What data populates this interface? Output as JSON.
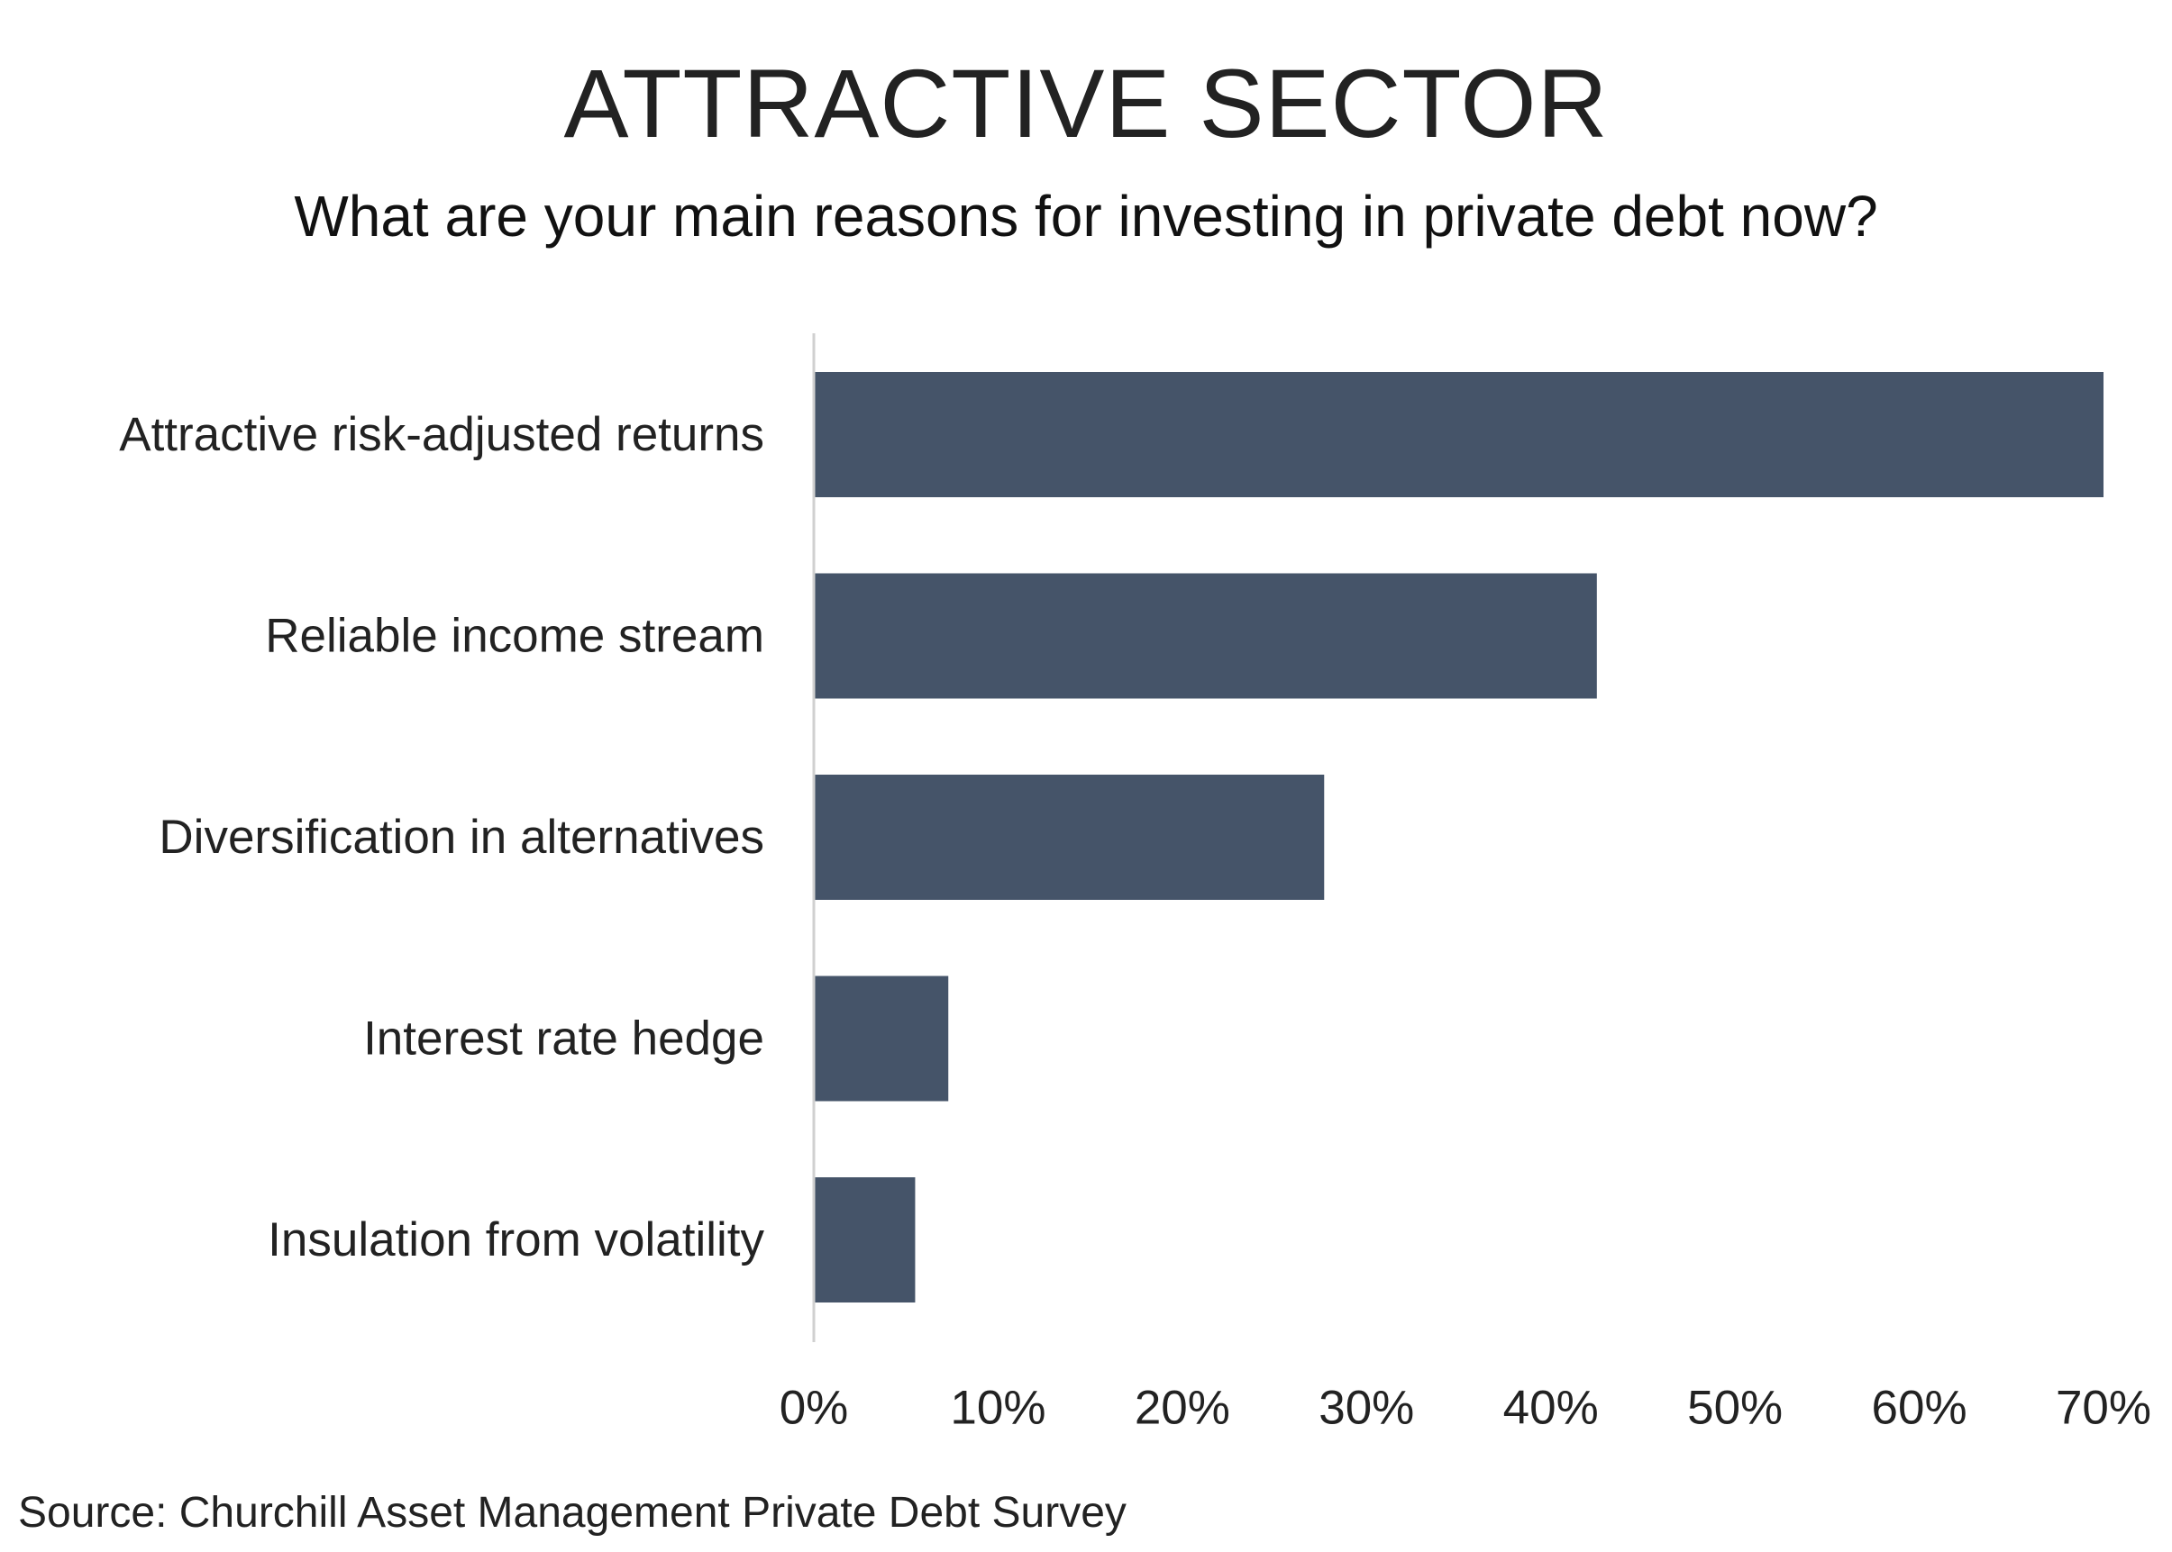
{
  "title": "ATTRACTIVE SECTOR",
  "subtitle": "What are your main reasons for investing in private debt now?",
  "source": "Source: Churchill Asset Management Private Debt Survey",
  "colors": {
    "bar": "#455469",
    "axis": "#d0d0d0",
    "text": "#222222"
  },
  "chart_data": {
    "type": "bar",
    "orientation": "horizontal",
    "title": "ATTRACTIVE SECTOR",
    "subtitle": "What are your main reasons for investing in private debt now?",
    "categories": [
      "Attractive risk-adjusted returns",
      "Reliable income stream",
      "Diversification in alternatives",
      "Interest rate hedge",
      "Insulation from volatility"
    ],
    "values": [
      70,
      42.5,
      27.7,
      7.3,
      5.5
    ],
    "value_unit": "%",
    "xlim": [
      0,
      70
    ],
    "xticks": [
      "0%",
      "10%",
      "20%",
      "30%",
      "40%",
      "50%",
      "60%",
      "70%"
    ],
    "grid": false,
    "legend": "none"
  }
}
